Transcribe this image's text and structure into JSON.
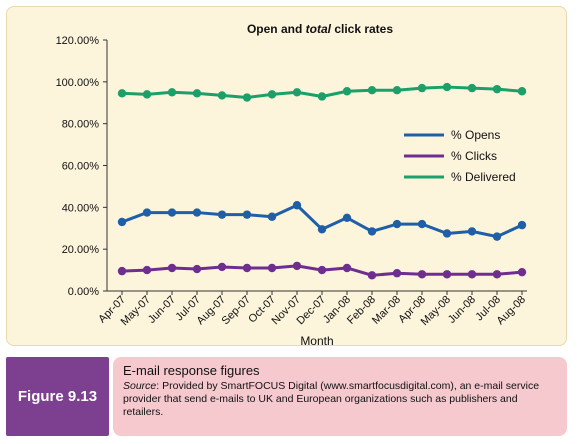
{
  "chart_data": {
    "type": "line",
    "title_prefix": "Open and ",
    "title_emphasis": "total",
    "title_suffix": " click rates",
    "xlabel": "Month",
    "ylabel": "",
    "ylim": [
      0,
      120
    ],
    "y_ticks": [
      "0.00%",
      "20.00%",
      "40.00%",
      "60.00%",
      "80.00%",
      "100.00%",
      "120.00%"
    ],
    "categories": [
      "Apr-07",
      "May-07",
      "Jun-07",
      "Jul-07",
      "Aug-07",
      "Sep-07",
      "Oct-07",
      "Nov-07",
      "Dec-07",
      "Jan-08",
      "Feb-08",
      "Mar-08",
      "Apr-08",
      "May-08",
      "Jun-08",
      "Jul-08",
      "Aug-08"
    ],
    "series": [
      {
        "name": "% Opens",
        "color": "#1f5fa8",
        "values": [
          33,
          37.5,
          37.5,
          37.5,
          36.5,
          36.5,
          35.5,
          41,
          29.5,
          35,
          28.5,
          32,
          32,
          27.5,
          28.5,
          26,
          31.5
        ]
      },
      {
        "name": "% Clicks",
        "color": "#6e2e90",
        "values": [
          9.5,
          10,
          11,
          10.5,
          11.5,
          11,
          11,
          12,
          10,
          11,
          7.5,
          8.5,
          8,
          8,
          8,
          8,
          9
        ]
      },
      {
        "name": "% Delivered",
        "color": "#1aa068",
        "values": [
          94.5,
          94,
          95,
          94.5,
          93.5,
          92.5,
          94,
          95,
          93,
          95.5,
          96,
          96,
          97,
          97.5,
          97,
          96.5,
          95.5
        ]
      }
    ],
    "legend_position": "right",
    "grid": false
  },
  "caption": {
    "figure_label": "Figure 9.13",
    "title": "E-mail response figures",
    "source_label": "Source",
    "source_text": ": Provided by SmartFOCUS Digital (www.smartfocusdigital.com), an e-mail service provider that send e-mails to UK and European organizations such as publishers and retailers."
  }
}
